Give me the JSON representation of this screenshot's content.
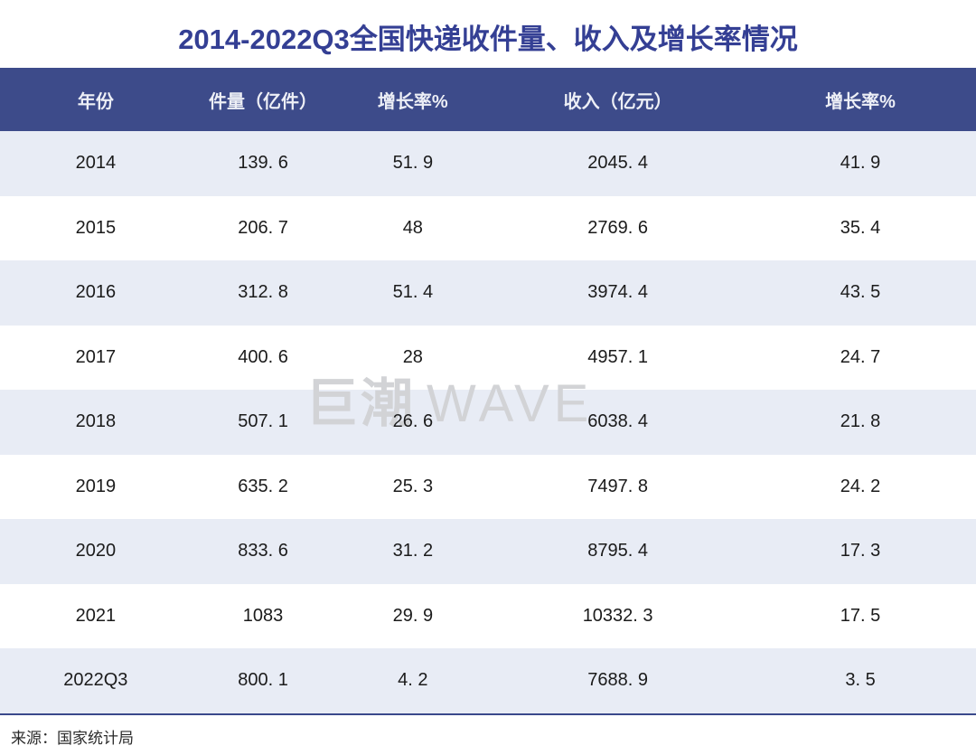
{
  "title": "2014-2022Q3全国快递收件量、收入及增长率情况",
  "watermark": {
    "cn": "巨潮",
    "en": "WAVE"
  },
  "source": "来源：国家统计局",
  "colors": {
    "title_text": "#343f94",
    "header_bg": "#3d4b8a",
    "header_text": "#edeff6",
    "stripe_row": "#e8ecf5",
    "white_row": "#ffffff",
    "bottom_border": "#3a498b",
    "watermark": "#d2d3d6"
  },
  "table": {
    "headers": [
      "年份",
      "件量（亿件）",
      "增长率%",
      "收入（亿元）",
      "增长率%"
    ]
  },
  "chart_data": {
    "type": "table",
    "title": "2014-2022Q3全国快递收件量、收入及增长率情况",
    "columns": [
      "年份",
      "件量（亿件）",
      "增长率%",
      "收入（亿元）",
      "增长率%"
    ],
    "rows": [
      [
        "2014",
        139.6,
        51.9,
        2045.4,
        41.9
      ],
      [
        "2015",
        206.7,
        48,
        2769.6,
        35.4
      ],
      [
        "2016",
        312.8,
        51.4,
        3974.4,
        43.5
      ],
      [
        "2017",
        400.6,
        28,
        4957.1,
        24.7
      ],
      [
        "2018",
        507.1,
        26.6,
        6038.4,
        21.8
      ],
      [
        "2019",
        635.2,
        25.3,
        7497.8,
        24.2
      ],
      [
        "2020",
        833.6,
        31.2,
        8795.4,
        17.3
      ],
      [
        "2021",
        1083,
        29.9,
        10332.3,
        17.5
      ],
      [
        "2022Q3",
        800.1,
        4.2,
        7688.9,
        3.5
      ]
    ],
    "source": "国家统计局"
  }
}
